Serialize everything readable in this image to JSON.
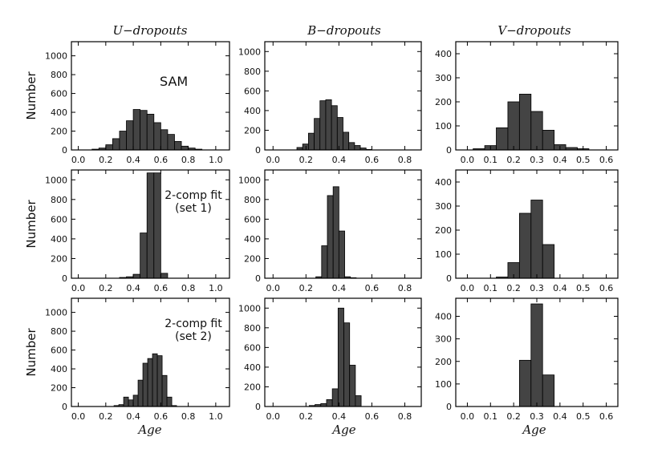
{
  "chart_data": [
    {
      "type": "bar",
      "panel": "U-dropouts / SAM",
      "row": 0,
      "col": 0,
      "title": "U−dropouts",
      "ylabel": "Number",
      "annotation": [
        "SAM"
      ],
      "xlim": [
        -0.05,
        1.1
      ],
      "ylim": [
        0,
        1150
      ],
      "bin_width": 0.05,
      "xticks": [
        0.0,
        0.2,
        0.4,
        0.6,
        0.8,
        1.0
      ],
      "xtick_labels": [
        "0.0",
        "0.2",
        "0.4",
        "0.6",
        "0.8",
        "1.0"
      ],
      "yticks": [
        0,
        200,
        400,
        600,
        800,
        1000
      ],
      "ytick_labels": [
        "0",
        "200",
        "400",
        "600",
        "800",
        "1000"
      ],
      "bin_starts": [
        0.1,
        0.15,
        0.2,
        0.25,
        0.3,
        0.35,
        0.4,
        0.45,
        0.5,
        0.55,
        0.6,
        0.65,
        0.7,
        0.75,
        0.8,
        0.85
      ],
      "values": [
        8,
        20,
        55,
        120,
        200,
        310,
        430,
        420,
        380,
        290,
        215,
        165,
        90,
        40,
        20,
        8
      ]
    },
    {
      "type": "bar",
      "panel": "B-dropouts / SAM",
      "row": 0,
      "col": 1,
      "title": "B−dropouts",
      "annotation": [],
      "xlim": [
        -0.05,
        0.9
      ],
      "ylim": [
        0,
        1100
      ],
      "bin_width": 0.035,
      "xticks": [
        0.0,
        0.2,
        0.4,
        0.6,
        0.8
      ],
      "xtick_labels": [
        "0.0",
        "0.2",
        "0.4",
        "0.6",
        "0.8"
      ],
      "yticks": [
        0,
        200,
        400,
        600,
        800,
        1000
      ],
      "ytick_labels": [
        "0",
        "200",
        "400",
        "600",
        "800",
        "1000"
      ],
      "bin_starts": [
        0.145,
        0.18,
        0.215,
        0.25,
        0.285,
        0.32,
        0.355,
        0.39,
        0.425,
        0.46,
        0.495,
        0.53,
        0.565
      ],
      "values": [
        25,
        60,
        170,
        320,
        500,
        510,
        450,
        330,
        180,
        75,
        45,
        20,
        5
      ]
    },
    {
      "type": "bar",
      "panel": "V-dropouts / SAM",
      "row": 0,
      "col": 2,
      "title": "V−dropouts",
      "annotation": [],
      "xlim": [
        -0.05,
        0.65
      ],
      "ylim": [
        0,
        450
      ],
      "bin_width": 0.05,
      "xticks": [
        0.0,
        0.1,
        0.2,
        0.3,
        0.4,
        0.5,
        0.6
      ],
      "xtick_labels": [
        "0.0",
        "0.1",
        "0.2",
        "0.3",
        "0.4",
        "0.5",
        "0.6"
      ],
      "yticks": [
        0,
        100,
        200,
        300,
        400
      ],
      "ytick_labels": [
        "0",
        "100",
        "200",
        "300",
        "400"
      ],
      "bin_starts": [
        0.025,
        0.075,
        0.125,
        0.175,
        0.225,
        0.275,
        0.325,
        0.375,
        0.425,
        0.475
      ],
      "values": [
        5,
        18,
        92,
        200,
        232,
        160,
        82,
        22,
        10,
        5
      ]
    },
    {
      "type": "bar",
      "panel": "U-dropouts / 2-comp fit (set 1)",
      "row": 1,
      "col": 0,
      "ylabel": "Number",
      "annotation": [
        "2-comp fit",
        "(set 1)"
      ],
      "xlim": [
        -0.05,
        1.1
      ],
      "ylim": [
        0,
        1100
      ],
      "bin_width": 0.05,
      "xticks": [
        0.0,
        0.2,
        0.4,
        0.6,
        0.8,
        1.0
      ],
      "xtick_labels": [
        "0.0",
        "0.2",
        "0.4",
        "0.6",
        "0.8",
        "1.0"
      ],
      "yticks": [
        0,
        200,
        400,
        600,
        800,
        1000
      ],
      "ytick_labels": [
        "0",
        "200",
        "400",
        "600",
        "800",
        "1000"
      ],
      "bin_starts": [
        0.3,
        0.35,
        0.4,
        0.45,
        0.5,
        0.55,
        0.6
      ],
      "values": [
        8,
        15,
        40,
        460,
        1070,
        1070,
        50
      ]
    },
    {
      "type": "bar",
      "panel": "B-dropouts / 2-comp fit (set 1)",
      "row": 1,
      "col": 1,
      "annotation": [],
      "xlim": [
        -0.05,
        0.9
      ],
      "ylim": [
        0,
        1100
      ],
      "bin_width": 0.035,
      "xticks": [
        0.0,
        0.2,
        0.4,
        0.6,
        0.8
      ],
      "xtick_labels": [
        "0.0",
        "0.2",
        "0.4",
        "0.6",
        "0.8"
      ],
      "yticks": [
        0,
        200,
        400,
        600,
        800,
        1000
      ],
      "ytick_labels": [
        "0",
        "200",
        "400",
        "600",
        "800",
        "1000"
      ],
      "bin_starts": [
        0.26,
        0.295,
        0.33,
        0.365,
        0.4,
        0.435,
        0.47
      ],
      "values": [
        15,
        330,
        840,
        930,
        480,
        15,
        5
      ]
    },
    {
      "type": "bar",
      "panel": "V-dropouts / 2-comp fit (set 1)",
      "row": 1,
      "col": 2,
      "annotation": [],
      "xlim": [
        -0.05,
        0.65
      ],
      "ylim": [
        0,
        450
      ],
      "bin_width": 0.05,
      "xticks": [
        0.0,
        0.1,
        0.2,
        0.3,
        0.4,
        0.5,
        0.6
      ],
      "xtick_labels": [
        "0.0",
        "0.1",
        "0.2",
        "0.3",
        "0.4",
        "0.5",
        "0.6"
      ],
      "yticks": [
        0,
        100,
        200,
        300,
        400
      ],
      "ytick_labels": [
        "0",
        "100",
        "200",
        "300",
        "400"
      ],
      "bin_starts": [
        0.125,
        0.175,
        0.225,
        0.275,
        0.325
      ],
      "values": [
        5,
        65,
        270,
        325,
        140
      ]
    },
    {
      "type": "bar",
      "panel": "U-dropouts / 2-comp fit (set 2)",
      "row": 2,
      "col": 0,
      "ylabel": "Number",
      "xlabel": "Age",
      "annotation": [
        "2-comp fit",
        "(set 2)"
      ],
      "xlim": [
        -0.05,
        1.1
      ],
      "ylim": [
        0,
        1150
      ],
      "bin_width": 0.035,
      "xticks": [
        0.0,
        0.2,
        0.4,
        0.6,
        0.8,
        1.0
      ],
      "xtick_labels": [
        "0.0",
        "0.2",
        "0.4",
        "0.6",
        "0.8",
        "1.0"
      ],
      "yticks": [
        0,
        200,
        400,
        600,
        800,
        1000
      ],
      "ytick_labels": [
        "0",
        "200",
        "400",
        "600",
        "800",
        "1000"
      ],
      "bin_starts": [
        0.26,
        0.295,
        0.33,
        0.365,
        0.4,
        0.435,
        0.47,
        0.505,
        0.54,
        0.575,
        0.61,
        0.645,
        0.68
      ],
      "values": [
        10,
        20,
        100,
        70,
        120,
        280,
        460,
        510,
        560,
        540,
        330,
        100,
        10
      ]
    },
    {
      "type": "bar",
      "panel": "B-dropouts / 2-comp fit (set 2)",
      "row": 2,
      "col": 1,
      "xlabel": "Age",
      "annotation": [],
      "xlim": [
        -0.05,
        0.9
      ],
      "ylim": [
        0,
        1100
      ],
      "bin_width": 0.035,
      "xticks": [
        0.0,
        0.2,
        0.4,
        0.6,
        0.8
      ],
      "xtick_labels": [
        "0.0",
        "0.2",
        "0.4",
        "0.6",
        "0.8"
      ],
      "yticks": [
        0,
        200,
        400,
        600,
        800,
        1000
      ],
      "ytick_labels": [
        "0",
        "200",
        "400",
        "600",
        "800",
        "1000"
      ],
      "bin_starts": [
        0.22,
        0.255,
        0.29,
        0.325,
        0.36,
        0.395,
        0.43,
        0.465,
        0.5
      ],
      "values": [
        10,
        20,
        30,
        70,
        180,
        1000,
        850,
        420,
        110
      ]
    },
    {
      "type": "bar",
      "panel": "V-dropouts / 2-comp fit (set 2)",
      "row": 2,
      "col": 2,
      "xlabel": "Age",
      "annotation": [],
      "xlim": [
        -0.05,
        0.65
      ],
      "ylim": [
        0,
        480
      ],
      "bin_width": 0.05,
      "xticks": [
        0.0,
        0.1,
        0.2,
        0.3,
        0.4,
        0.5,
        0.6
      ],
      "xtick_labels": [
        "0.0",
        "0.1",
        "0.2",
        "0.3",
        "0.4",
        "0.5",
        "0.6"
      ],
      "yticks": [
        0,
        100,
        200,
        300,
        400
      ],
      "ytick_labels": [
        "0",
        "100",
        "200",
        "300",
        "400"
      ],
      "bin_starts": [
        0.225,
        0.275,
        0.325
      ],
      "values": [
        205,
        455,
        140
      ]
    }
  ],
  "figure": {
    "column_titles": [
      "U−dropouts",
      "B−dropouts",
      "V−dropouts"
    ],
    "row_ylabel": "Number",
    "xlabel": "Age"
  },
  "colors": {
    "bar_fill": "#444444",
    "bar_edge": "#000000",
    "axes": "#000000"
  }
}
